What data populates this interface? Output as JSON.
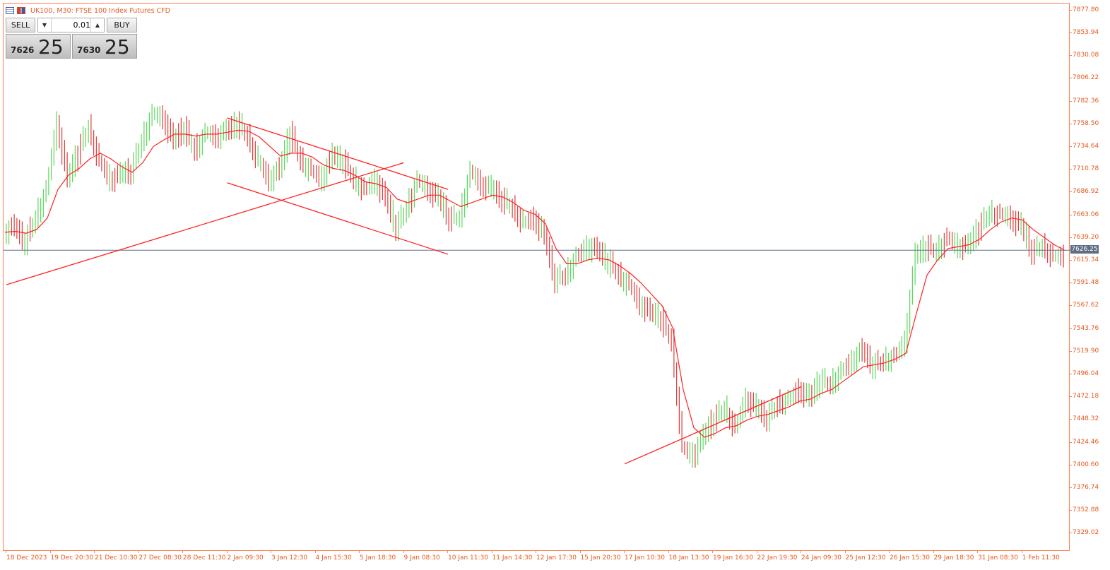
{
  "window": {
    "title": "UK100, M30:  FTSE 100 Index Futures CFD",
    "icons": [
      "chart-window-icon",
      "tile-window-icon"
    ]
  },
  "trade_panel": {
    "sell_label": "SELL",
    "buy_label": "BUY",
    "lot_value": "0.01",
    "sell_price_main": "7626",
    "sell_price_big": "25",
    "buy_price_main": "7630",
    "buy_price_big": "25"
  },
  "colors": {
    "axis": "#ff7f50",
    "axis_text": "#e25b22",
    "bull_bar": "#5cd65c",
    "bear_bar": "#e23b3b",
    "moving_average": "#ff2020",
    "trendline": "#ff2020",
    "current_price_line": "#5f6e84"
  },
  "current_price_label": "7626.25",
  "chart_data": {
    "type": "line",
    "title": "UK100, M30:  FTSE 100 Index Futures CFD",
    "price_ticks": [
      "7877.80",
      "7853.94",
      "7830.08",
      "7806.22",
      "7782.36",
      "7758.50",
      "7734.64",
      "7710.78",
      "7686.92",
      "7663.06",
      "7639.20",
      "7615.34",
      "7591.48",
      "7567.62",
      "7543.76",
      "7519.90",
      "7496.04",
      "7472.18",
      "7448.32",
      "7424.46",
      "7400.60",
      "7376.74",
      "7352.88",
      "7329.02"
    ],
    "time_ticks": [
      "18 Dec 2023",
      "19 Dec 20:30",
      "21 Dec 10:30",
      "27 Dec 08:30",
      "28 Dec 11:30",
      "2 Jan 09:30",
      "3 Jan 12:30",
      "4 Jan 15:30",
      "5 Jan 18:30",
      "9 Jan 08:30",
      "10 Jan 11:30",
      "11 Jan 14:30",
      "12 Jan 17:30",
      "15 Jan 20:30",
      "17 Jan 10:30",
      "18 Jan 13:30",
      "19 Jan 16:30",
      "22 Jan 19:30",
      "24 Jan 09:30",
      "25 Jan 12:30",
      "26 Jan 15:30",
      "29 Jan 18:30",
      "31 Jan 08:30",
      "1 Feb 11:30"
    ],
    "ylim": [
      7310,
      7885
    ],
    "current_price": 7626.25,
    "series": [
      {
        "values": [
          7645,
          7650,
          7635,
          7660,
          7690,
          7760,
          7700,
          7730,
          7755,
          7720,
          7700,
          7705,
          7710,
          7740,
          7770,
          7765,
          7740,
          7755,
          7730,
          7750,
          7745,
          7750,
          7760,
          7745,
          7720,
          7700,
          7710,
          7750,
          7720,
          7710,
          7700,
          7725,
          7720,
          7700,
          7690,
          7700,
          7680,
          7650,
          7670,
          7700,
          7690,
          7680,
          7660,
          7660,
          7710,
          7695,
          7690,
          7680,
          7670,
          7655,
          7660,
          7640,
          7595,
          7600,
          7620,
          7630,
          7625,
          7615,
          7600,
          7590,
          7570,
          7560,
          7555,
          7530,
          7420,
          7410,
          7430,
          7450,
          7460,
          7440,
          7470,
          7460,
          7450,
          7465,
          7470,
          7480,
          7470,
          7490,
          7485,
          7500,
          7510,
          7520,
          7505,
          7510,
          7515,
          7530,
          7620,
          7630,
          7625,
          7640,
          7630,
          7630,
          7650,
          7665,
          7665,
          7660,
          7650,
          7625,
          7630,
          7620,
          7620
        ],
        "ma": [
          7645,
          7646,
          7644,
          7648,
          7660,
          7690,
          7705,
          7712,
          7722,
          7728,
          7722,
          7714,
          7708,
          7718,
          7735,
          7742,
          7748,
          7748,
          7746,
          7748,
          7748,
          7750,
          7752,
          7751,
          7745,
          7735,
          7725,
          7728,
          7728,
          7724,
          7716,
          7712,
          7710,
          7705,
          7698,
          7696,
          7692,
          7680,
          7676,
          7680,
          7684,
          7684,
          7678,
          7672,
          7676,
          7680,
          7684,
          7682,
          7676,
          7668,
          7664,
          7654,
          7628,
          7612,
          7612,
          7616,
          7618,
          7616,
          7610,
          7602,
          7592,
          7580,
          7568,
          7545,
          7480,
          7440,
          7430,
          7434,
          7440,
          7442,
          7448,
          7452,
          7454,
          7458,
          7462,
          7468,
          7470,
          7476,
          7480,
          7488,
          7496,
          7504,
          7506,
          7508,
          7512,
          7518,
          7560,
          7600,
          7616,
          7628,
          7630,
          7632,
          7638,
          7648,
          7656,
          7660,
          7658,
          7648,
          7640,
          7632,
          7626
        ]
      }
    ],
    "trendlines": [
      {
        "from": [
          "18 Dec 2023",
          7590
        ],
        "to": [
          "9 Jan 08:30",
          7718
        ]
      },
      {
        "from": [
          "2 Jan 09:30",
          7765
        ],
        "to": [
          "10 Jan 11:30",
          7690
        ]
      },
      {
        "from": [
          "2 Jan 09:30",
          7697
        ],
        "to": [
          "10 Jan 11:30",
          7622
        ]
      },
      {
        "from": [
          "17 Jan 10:30",
          7402
        ],
        "to": [
          "24 Jan 09:30",
          7483
        ]
      }
    ]
  }
}
